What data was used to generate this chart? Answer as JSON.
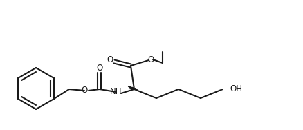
{
  "bg_color": "#ffffff",
  "line_color": "#1a1a1a",
  "line_width": 1.5,
  "font_size": 8.5,
  "figsize": [
    4.38,
    1.88
  ],
  "dpi": 100,
  "xlim": [
    0,
    438
  ],
  "ylim": [
    0,
    188
  ]
}
